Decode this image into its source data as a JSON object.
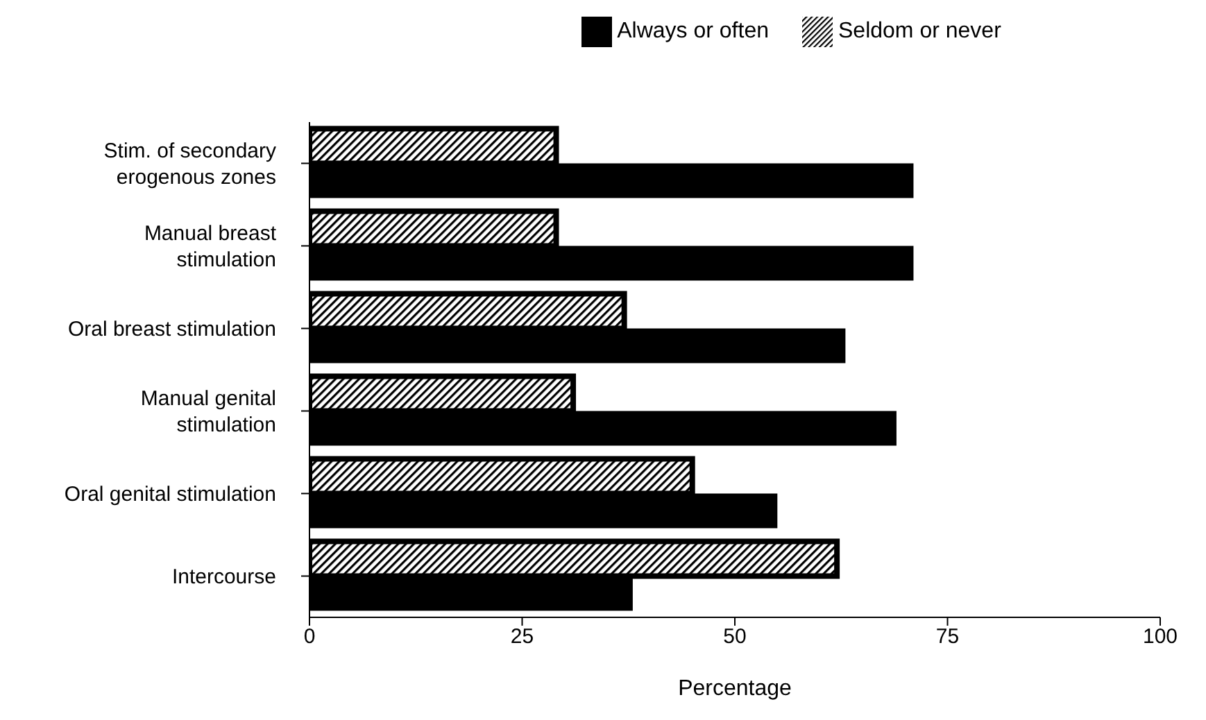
{
  "chart_data": {
    "type": "bar",
    "orientation": "horizontal",
    "xlabel": "Percentage",
    "categories": [
      "Stim. of secondary erogenous zones",
      "Manual breast stimulation",
      "Oral breast stimulation",
      "Manual genital stimulation",
      "Oral genital stimulation",
      "Intercourse"
    ],
    "series": [
      {
        "name": "Always or often",
        "color": "#000000",
        "values": [
          71,
          71,
          63,
          69,
          55,
          38
        ]
      },
      {
        "name": "Seldom or never",
        "color": "#000000",
        "values": [
          29,
          29,
          37,
          31,
          45,
          62
        ]
      }
    ],
    "xlim": [
      0,
      100
    ],
    "xticks": [
      0,
      25,
      50,
      75,
      100
    ],
    "grid": false,
    "legend": "top"
  }
}
